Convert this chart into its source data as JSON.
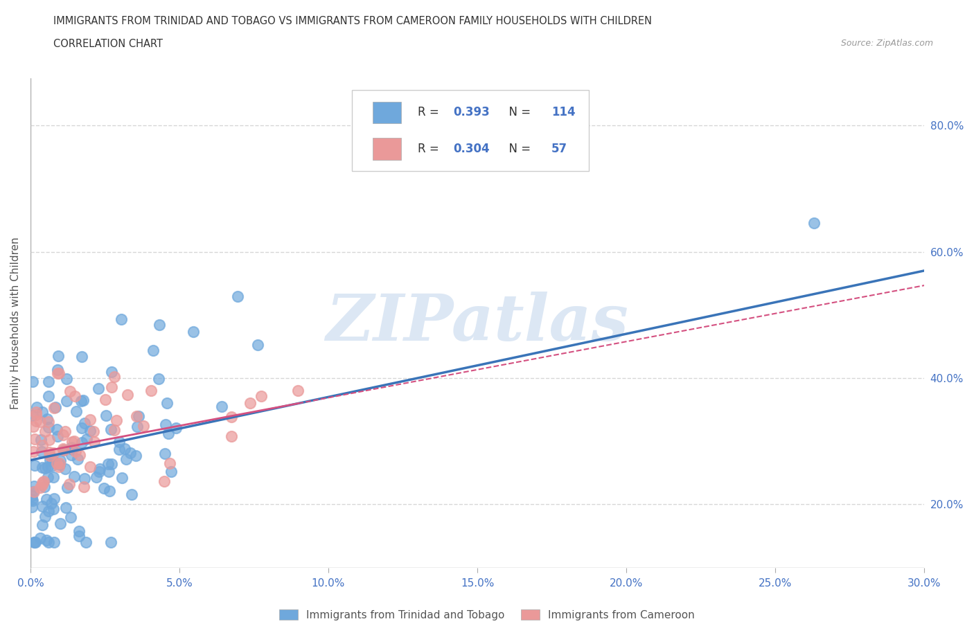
{
  "title_line1": "IMMIGRANTS FROM TRINIDAD AND TOBAGO VS IMMIGRANTS FROM CAMEROON FAMILY HOUSEHOLDS WITH CHILDREN",
  "title_line2": "CORRELATION CHART",
  "source_text": "Source: ZipAtlas.com",
  "ylabel": "Family Households with Children",
  "xlim": [
    0.0,
    0.3
  ],
  "ylim": [
    0.1,
    0.875
  ],
  "xticks": [
    0.0,
    0.05,
    0.1,
    0.15,
    0.2,
    0.25,
    0.3
  ],
  "yticks": [
    0.2,
    0.4,
    0.6,
    0.8
  ],
  "tt_color": "#6fa8dc",
  "cam_color": "#ea9999",
  "tt_line_color": "#3a74b8",
  "cam_line_color": "#d45080",
  "tt_R": 0.393,
  "tt_N": 114,
  "cam_R": 0.304,
  "cam_N": 57,
  "watermark": "ZIPatlas",
  "watermark_color": "#c0d4eb",
  "background_color": "#ffffff",
  "grid_color": "#cccccc",
  "legend_text_color": "#4472c4",
  "legend_label_color": "#333333"
}
